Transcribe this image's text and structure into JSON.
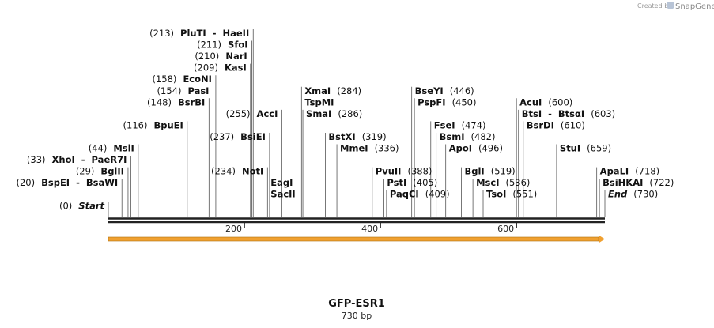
{
  "credit": {
    "prefix": "Created by",
    "brand": "SnapGene"
  },
  "map": {
    "name": "GFP-ESR1",
    "length_label": "730 bp",
    "length": 730,
    "ruler_ticks": [
      {
        "pos": 200,
        "label": "200"
      },
      {
        "pos": 400,
        "label": "400"
      },
      {
        "pos": 600,
        "label": "600"
      }
    ],
    "feature_color": "#f0a030",
    "sites": [
      {
        "text": "(213)  PluTI  -  HaeII",
        "pos": 213,
        "row": 0
      },
      {
        "text": "(211)  SfoI",
        "pos": 211,
        "row": 1
      },
      {
        "text": "(210)  NarI",
        "pos": 210,
        "row": 2
      },
      {
        "text": "(209)  KasI",
        "pos": 209,
        "row": 3
      },
      {
        "text": "(158)  EcoNI",
        "pos": 158,
        "row": 4
      },
      {
        "text": "(154)  PasI",
        "pos": 154,
        "row": 5
      },
      {
        "text": "(148)  BsrBI",
        "pos": 148,
        "row": 6
      },
      {
        "text": "(116)  BpuEI",
        "pos": 116,
        "row": 8
      },
      {
        "text": "(44)  MslI",
        "pos": 44,
        "row": 10
      },
      {
        "text": "(33)  XhoI  -  PaeR7I",
        "pos": 33,
        "row": 11
      },
      {
        "text": "(29)  BglII",
        "pos": 29,
        "row": 12
      },
      {
        "text": "(20)  BspEI  -  BsaWI",
        "pos": 20,
        "row": 13
      },
      {
        "text": "(0)  Start",
        "pos": 0,
        "row": 15
      },
      {
        "text": "(255)  AccI",
        "pos": 255,
        "row": 7
      },
      {
        "text": "(237)  BsiEI",
        "pos": 237,
        "row": 9
      },
      {
        "text": "(234)  NotI",
        "pos": 234,
        "row": 12
      },
      {
        "text": "EagI",
        "pos": 234,
        "row": 13
      },
      {
        "text": "SacII",
        "pos": 234,
        "row": 14
      },
      {
        "text": "XmaI  (284)",
        "pos": 284,
        "row": 5
      },
      {
        "text": "TspMI",
        "pos": 284,
        "row": 6
      },
      {
        "text": "SmaI  (286)",
        "pos": 286,
        "row": 7
      },
      {
        "text": "BstXI  (319)",
        "pos": 319,
        "row": 9
      },
      {
        "text": "MmeI  (336)",
        "pos": 336,
        "row": 10
      },
      {
        "text": "PvuII  (388)",
        "pos": 388,
        "row": 12
      },
      {
        "text": "PstI  (405)",
        "pos": 405,
        "row": 13
      },
      {
        "text": "PaqCI  (409)",
        "pos": 409,
        "row": 14
      },
      {
        "text": "BseYI  (446)",
        "pos": 446,
        "row": 5
      },
      {
        "text": "PspFI  (450)",
        "pos": 450,
        "row": 6
      },
      {
        "text": "FseI  (474)",
        "pos": 474,
        "row": 8
      },
      {
        "text": "BsmI  (482)",
        "pos": 482,
        "row": 9
      },
      {
        "text": "ApoI  (496)",
        "pos": 496,
        "row": 10
      },
      {
        "text": "BglI  (519)",
        "pos": 519,
        "row": 12
      },
      {
        "text": "MscI  (536)",
        "pos": 536,
        "row": 13
      },
      {
        "text": "TsoI  (551)",
        "pos": 551,
        "row": 14
      },
      {
        "text": "AcuI  (600)",
        "pos": 600,
        "row": 6
      },
      {
        "text": "BtsI  -  BtsαI  (603)",
        "pos": 603,
        "row": 7
      },
      {
        "text": "BsrDI  (610)",
        "pos": 610,
        "row": 8
      },
      {
        "text": "StuI  (659)",
        "pos": 659,
        "row": 10
      },
      {
        "text": "ApaLI  (718)",
        "pos": 718,
        "row": 12
      },
      {
        "text": "BsiHKAI  (722)",
        "pos": 722,
        "row": 13
      },
      {
        "text": "End  (730)",
        "pos": 730,
        "row": 14
      }
    ]
  }
}
